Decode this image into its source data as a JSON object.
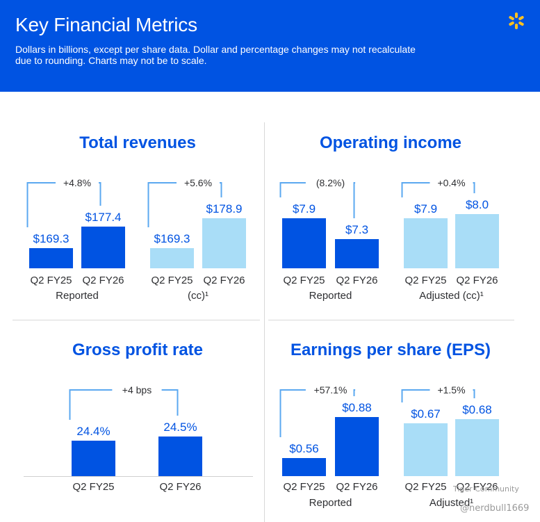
{
  "header": {
    "title": "Key Financial Metrics",
    "subtitle": "Dollars in billions, except per share data. Dollar and percentage changes may not recalculate due to rounding. Charts may not be to scale.",
    "logo_icon": "spark-icon"
  },
  "colors": {
    "header_bg": "#0053e2",
    "bar_dark": "#0053e2",
    "bar_light": "#a9ddf7",
    "title_text": "#0053e2",
    "value_text": "#0053e2",
    "label_text": "#2e2f32",
    "bracket": "#5ba8f0",
    "divider": "#d8d8d8"
  },
  "chart_data": [
    {
      "type": "bar",
      "title": "Total revenues",
      "groups": [
        {
          "name": "Reported",
          "categories": [
            "Q2 FY25",
            "Q2 FY26"
          ],
          "values": [
            169.3,
            177.4
          ],
          "value_labels": [
            "$169.3",
            "$177.4"
          ],
          "change": "+4.8%",
          "shade": "dark"
        },
        {
          "name": "(cc)¹",
          "categories": [
            "Q2 FY25",
            "Q2 FY26"
          ],
          "values": [
            169.3,
            178.9
          ],
          "value_labels": [
            "$169.3",
            "$178.9"
          ],
          "change": "+5.6%",
          "shade": "light"
        }
      ]
    },
    {
      "type": "bar",
      "title": "Operating income",
      "groups": [
        {
          "name": "Reported",
          "categories": [
            "Q2 FY25",
            "Q2 FY26"
          ],
          "values": [
            7.9,
            7.3
          ],
          "value_labels": [
            "$7.9",
            "$7.3"
          ],
          "change": "(8.2%)",
          "shade": "dark"
        },
        {
          "name": "Adjusted (cc)¹",
          "categories": [
            "Q2 FY25",
            "Q2 FY26"
          ],
          "values": [
            7.9,
            8.0
          ],
          "value_labels": [
            "$7.9",
            "$8.0"
          ],
          "change": "+0.4%",
          "shade": "light"
        }
      ]
    },
    {
      "type": "bar",
      "title": "Gross profit rate",
      "groups": [
        {
          "name": "",
          "categories": [
            "Q2 FY25",
            "Q2 FY26"
          ],
          "values": [
            24.4,
            24.5
          ],
          "value_labels": [
            "24.4%",
            "24.5%"
          ],
          "change": "+4 bps",
          "shade": "dark"
        }
      ]
    },
    {
      "type": "bar",
      "title": "Earnings per share (EPS)",
      "groups": [
        {
          "name": "Reported",
          "categories": [
            "Q2 FY25",
            "Q2 FY26"
          ],
          "values": [
            0.56,
            0.88
          ],
          "value_labels": [
            "$0.56",
            "$0.88"
          ],
          "change": "+57.1%",
          "shade": "dark"
        },
        {
          "name": "Adjusted¹",
          "categories": [
            "Q2 FY25",
            "Q2 FY26"
          ],
          "values": [
            0.67,
            0.68
          ],
          "value_labels": [
            "$0.67",
            "$0.68"
          ],
          "change": "+1.5%",
          "shade": "light"
        }
      ]
    }
  ],
  "watermark": {
    "line1": "Tiger Community",
    "line2": "@nerdbull1669"
  }
}
